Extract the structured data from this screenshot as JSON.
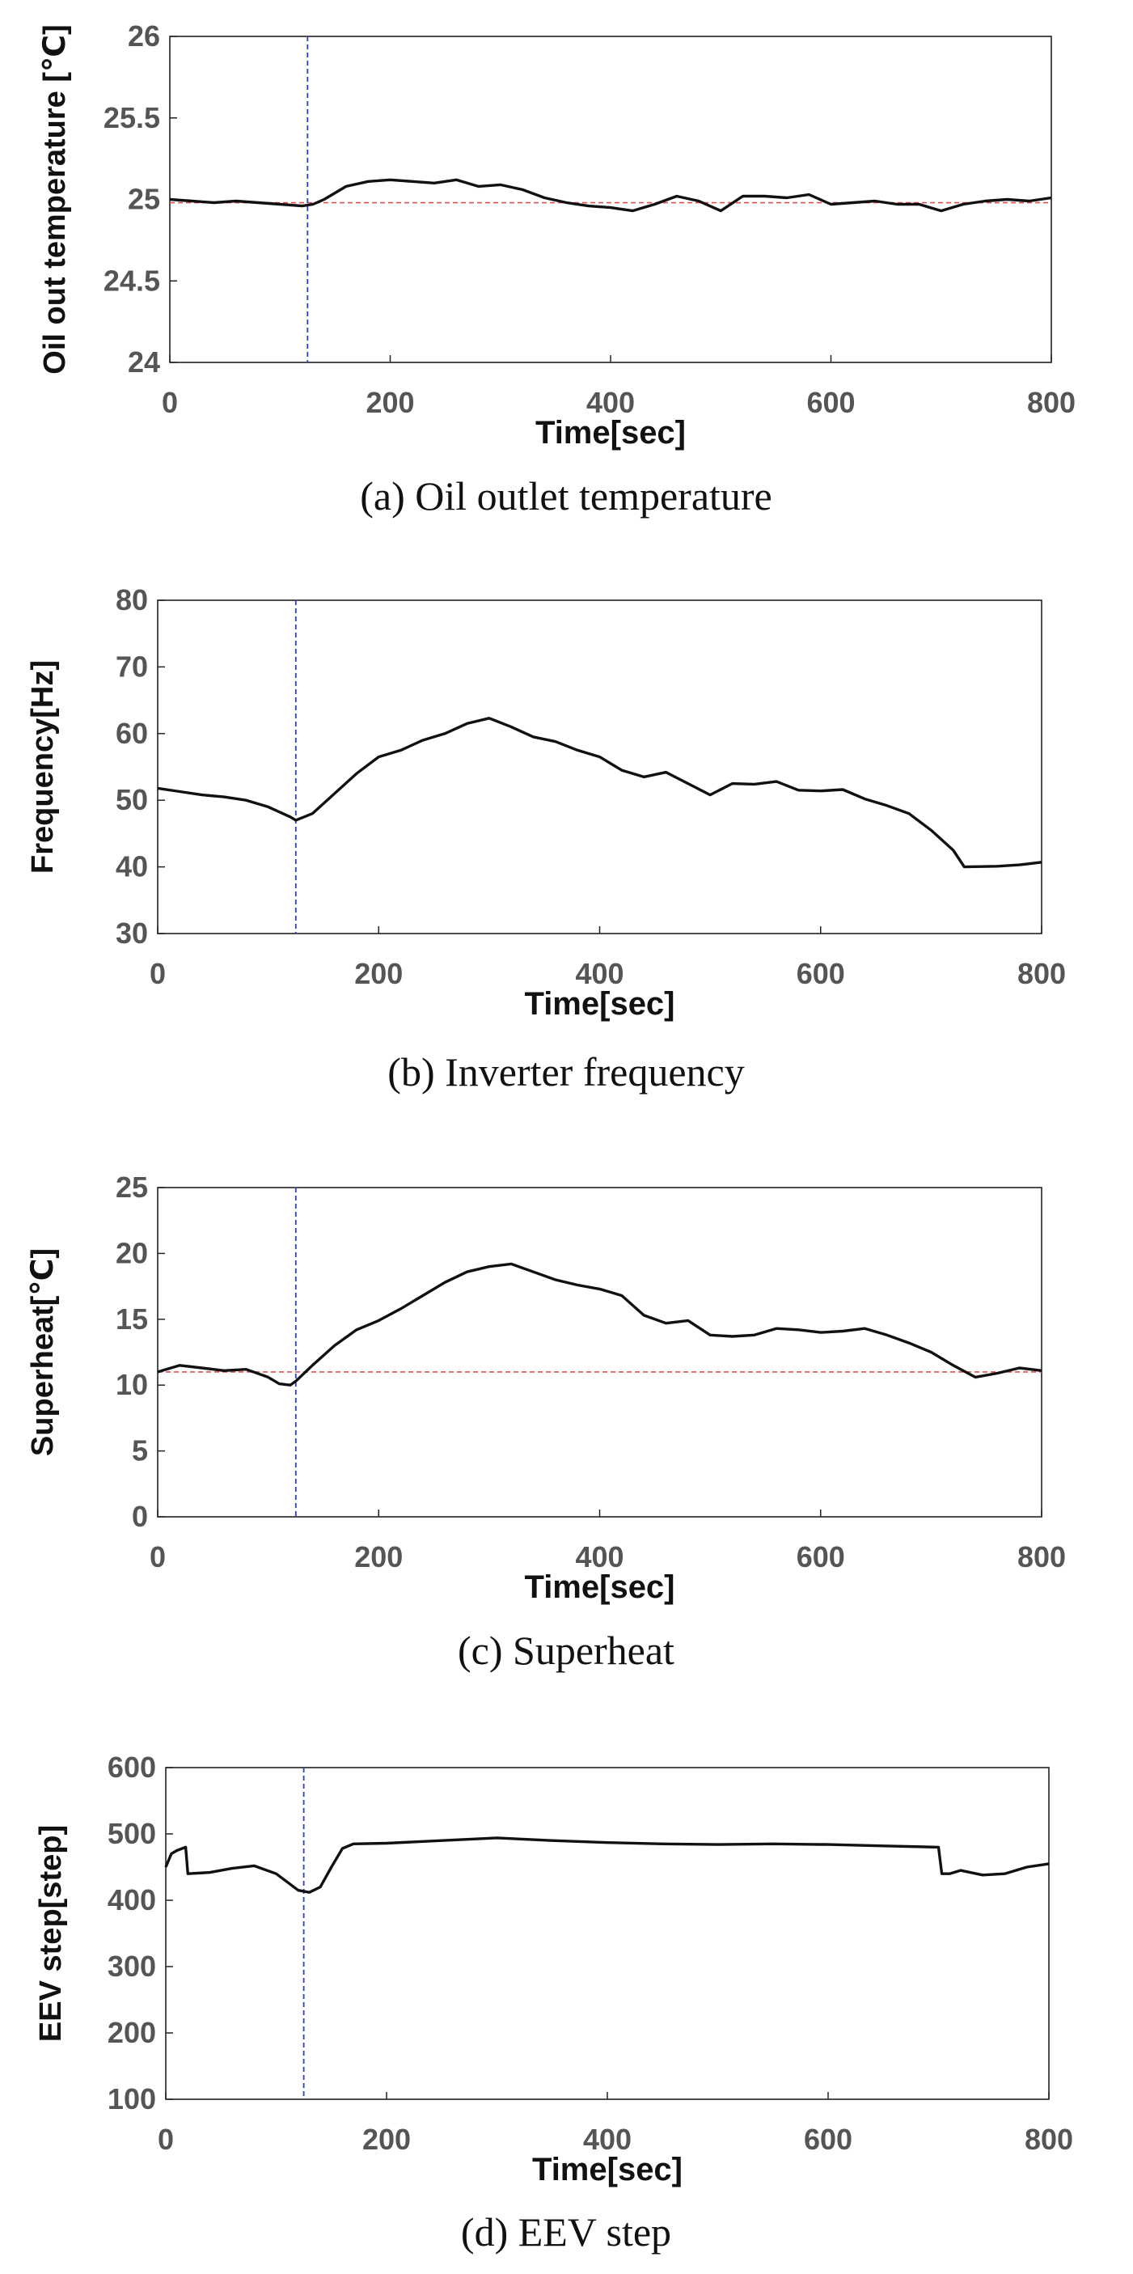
{
  "chart_data": [
    {
      "type": "line",
      "caption": "(a) Oil outlet temperature",
      "xlabel": "Time[sec]",
      "ylabel": "Oil out temperature [℃]",
      "xlim": [
        0,
        800
      ],
      "ylim": [
        24,
        26
      ],
      "xticks": [
        "0",
        "200",
        "400",
        "600",
        "800"
      ],
      "yticks": [
        "24",
        "24.5",
        "25",
        "25.5",
        "26"
      ],
      "grid": false,
      "vline": {
        "x": 125,
        "color": "#2f3fbf",
        "style": "dashed"
      },
      "hline": {
        "y": 24.98,
        "color": "#e05050",
        "style": "dashed"
      },
      "series": [
        {
          "color": "#111111",
          "x": [
            0,
            20,
            40,
            60,
            80,
            100,
            120,
            130,
            140,
            160,
            180,
            200,
            220,
            240,
            260,
            280,
            300,
            320,
            340,
            360,
            380,
            400,
            420,
            440,
            460,
            480,
            500,
            520,
            540,
            560,
            580,
            600,
            620,
            640,
            660,
            680,
            700,
            720,
            740,
            760,
            780,
            800
          ],
          "y": [
            25.0,
            24.99,
            24.98,
            24.99,
            24.98,
            24.97,
            24.96,
            24.97,
            25.0,
            25.08,
            25.11,
            25.12,
            25.11,
            25.1,
            25.12,
            25.08,
            25.09,
            25.06,
            25.01,
            24.98,
            24.96,
            24.95,
            24.93,
            24.97,
            25.02,
            24.99,
            24.93,
            25.02,
            25.02,
            25.01,
            25.03,
            24.97,
            24.98,
            24.99,
            24.97,
            24.97,
            24.93,
            24.97,
            24.99,
            25.0,
            24.99,
            25.01
          ]
        }
      ]
    },
    {
      "type": "line",
      "caption": "(b) Inverter frequency",
      "xlabel": "Time[sec]",
      "ylabel": "Frequency[Hz]",
      "xlim": [
        0,
        800
      ],
      "ylim": [
        30,
        80
      ],
      "xticks": [
        "0",
        "200",
        "400",
        "600",
        "800"
      ],
      "yticks": [
        "30",
        "40",
        "50",
        "60",
        "70",
        "80"
      ],
      "grid": false,
      "vline": {
        "x": 125,
        "color": "#2f3fbf",
        "style": "dashed"
      },
      "series": [
        {
          "color": "#111111",
          "x": [
            0,
            20,
            40,
            60,
            80,
            100,
            120,
            125,
            140,
            160,
            180,
            200,
            220,
            240,
            260,
            280,
            300,
            320,
            340,
            360,
            380,
            400,
            420,
            440,
            460,
            480,
            500,
            520,
            540,
            560,
            580,
            600,
            620,
            640,
            660,
            680,
            700,
            720,
            730,
            760,
            780,
            800
          ],
          "y": [
            51.8,
            51.3,
            50.8,
            50.5,
            50.0,
            49.0,
            47.5,
            47.0,
            48.0,
            51.0,
            54.0,
            56.5,
            57.5,
            59.0,
            60.0,
            61.5,
            62.3,
            61.0,
            59.5,
            58.8,
            57.5,
            56.5,
            54.5,
            53.5,
            54.2,
            52.5,
            50.8,
            52.5,
            52.4,
            52.8,
            51.5,
            51.4,
            51.6,
            50.2,
            49.2,
            48.0,
            45.5,
            42.5,
            40.0,
            40.1,
            40.3,
            40.7
          ]
        }
      ]
    },
    {
      "type": "line",
      "caption": "(c) Superheat",
      "xlabel": "Time[sec]",
      "ylabel": "Superheat[℃]",
      "xlim": [
        0,
        800
      ],
      "ylim": [
        0,
        25
      ],
      "xticks": [
        "0",
        "200",
        "400",
        "600",
        "800"
      ],
      "yticks": [
        "0",
        "5",
        "10",
        "15",
        "20",
        "25"
      ],
      "grid": false,
      "vline": {
        "x": 125,
        "color": "#2f3fbf",
        "style": "dashed"
      },
      "hline": {
        "y": 11,
        "color": "#e05050",
        "style": "dashed"
      },
      "series": [
        {
          "color": "#111111",
          "x": [
            0,
            20,
            40,
            60,
            80,
            100,
            110,
            120,
            125,
            140,
            160,
            180,
            200,
            220,
            240,
            260,
            280,
            300,
            320,
            340,
            360,
            380,
            400,
            420,
            440,
            460,
            480,
            500,
            520,
            540,
            560,
            580,
            600,
            620,
            640,
            660,
            680,
            700,
            720,
            740,
            760,
            780,
            800
          ],
          "y": [
            11.0,
            11.5,
            11.3,
            11.1,
            11.2,
            10.6,
            10.1,
            10.0,
            10.3,
            11.5,
            13.0,
            14.2,
            14.9,
            15.8,
            16.8,
            17.8,
            18.6,
            19.0,
            19.2,
            18.6,
            18.0,
            17.6,
            17.3,
            16.8,
            15.3,
            14.7,
            14.9,
            13.8,
            13.7,
            13.8,
            14.3,
            14.2,
            14.0,
            14.1,
            14.3,
            13.8,
            13.2,
            12.5,
            11.5,
            10.6,
            10.9,
            11.3,
            11.1
          ]
        }
      ]
    },
    {
      "type": "line",
      "caption": "(d) EEV step",
      "xlabel": "Time[sec]",
      "ylabel": "EEV step[step]",
      "xlim": [
        0,
        800
      ],
      "ylim": [
        100,
        600
      ],
      "xticks": [
        "0",
        "200",
        "400",
        "600",
        "800"
      ],
      "yticks": [
        "100",
        "200",
        "300",
        "400",
        "500",
        "600"
      ],
      "grid": false,
      "vline": {
        "x": 125,
        "color": "#2f3fbf",
        "style": "dashed"
      },
      "series": [
        {
          "color": "#111111",
          "x": [
            0,
            5,
            10,
            18,
            20,
            40,
            60,
            80,
            100,
            120,
            130,
            140,
            150,
            160,
            170,
            200,
            250,
            300,
            350,
            400,
            450,
            500,
            550,
            600,
            650,
            700,
            703,
            710,
            720,
            740,
            760,
            780,
            800
          ],
          "y": [
            450,
            470,
            475,
            480,
            440,
            442,
            448,
            452,
            440,
            415,
            412,
            420,
            450,
            478,
            485,
            486,
            490,
            494,
            490,
            487,
            485,
            484,
            485,
            484,
            482,
            480,
            440,
            440,
            445,
            438,
            440,
            450,
            455
          ]
        }
      ]
    }
  ]
}
